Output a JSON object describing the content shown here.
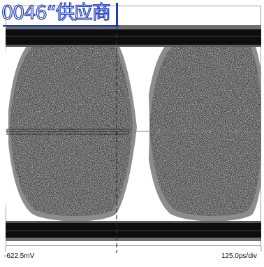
{
  "caption": {
    "text": "0046“供应商"
  },
  "readouts": {
    "offset": "-622.5mV",
    "timebase": "125.0ps/div"
  },
  "colors": {
    "caption": "#1c3ab8",
    "background": "#ffffff",
    "eye_fill": "#2b2b2b",
    "rail": "#0d0d0d",
    "graticule": "#9a9a9a",
    "marker": "#333333"
  }
}
